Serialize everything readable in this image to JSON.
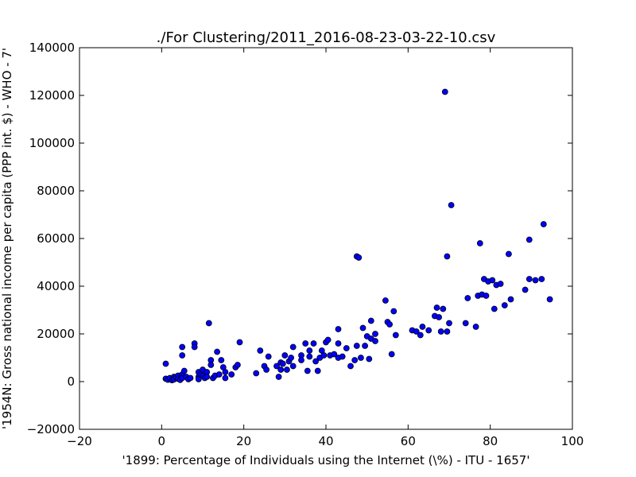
{
  "chart_data": {
    "type": "scatter",
    "title": "./For Clustering/2011_2016-08-23-03-22-10.csv",
    "xlabel": "'1899: Percentage of Individuals using the Internet (\\%) - ITU - 1657'",
    "ylabel": "'1954N: Gross national income per capita (PPP int. $) - WHO - 7'",
    "xlim": [
      -20,
      100
    ],
    "ylim": [
      -20000,
      140000
    ],
    "xticks": [
      -20,
      0,
      20,
      40,
      60,
      80,
      100
    ],
    "yticks": [
      -20000,
      0,
      20000,
      40000,
      60000,
      80000,
      100000,
      120000,
      140000
    ],
    "xtick_labels": [
      "−20",
      "0",
      "20",
      "40",
      "60",
      "80",
      "100"
    ],
    "ytick_labels": [
      "−20000",
      "0",
      "20000",
      "40000",
      "60000",
      "80000",
      "100000",
      "120000",
      "140000"
    ],
    "grid": false,
    "marker_color": "#0000ff",
    "marker_edge": "#000000",
    "points": [
      [
        1,
        7500
      ],
      [
        1,
        1200
      ],
      [
        1.5,
        800
      ],
      [
        2,
        1500
      ],
      [
        2.5,
        600
      ],
      [
        3,
        2000
      ],
      [
        3,
        900
      ],
      [
        3.5,
        1800
      ],
      [
        4,
        2500
      ],
      [
        4,
        1200
      ],
      [
        4.5,
        700
      ],
      [
        5,
        3000
      ],
      [
        5,
        1500
      ],
      [
        5,
        14500
      ],
      [
        5,
        11000
      ],
      [
        5.5,
        4500
      ],
      [
        6,
        2000
      ],
      [
        6.5,
        1000
      ],
      [
        7,
        1500
      ],
      [
        8,
        16000
      ],
      [
        8,
        14500
      ],
      [
        9,
        4000
      ],
      [
        9,
        2000
      ],
      [
        9,
        1000
      ],
      [
        9.5,
        3000
      ],
      [
        10,
        5000
      ],
      [
        10,
        2500
      ],
      [
        10.5,
        1500
      ],
      [
        11,
        4000
      ],
      [
        11,
        2000
      ],
      [
        11.5,
        24500
      ],
      [
        12,
        9000
      ],
      [
        12,
        7000
      ],
      [
        12.5,
        1500
      ],
      [
        13,
        2500
      ],
      [
        13.5,
        12500
      ],
      [
        14,
        3000
      ],
      [
        14.5,
        9000
      ],
      [
        15,
        6000
      ],
      [
        15.5,
        4000
      ],
      [
        15.5,
        1500
      ],
      [
        17,
        3000
      ],
      [
        18,
        6000
      ],
      [
        18.5,
        7000
      ],
      [
        19,
        16500
      ],
      [
        23,
        3500
      ],
      [
        24,
        13000
      ],
      [
        25,
        6500
      ],
      [
        25.5,
        5000
      ],
      [
        26,
        10500
      ],
      [
        28,
        6500
      ],
      [
        28.5,
        2000
      ],
      [
        29,
        8000
      ],
      [
        29,
        5000
      ],
      [
        29.5,
        7500
      ],
      [
        30,
        11000
      ],
      [
        30.5,
        5000
      ],
      [
        31,
        8500
      ],
      [
        31.5,
        10000
      ],
      [
        32,
        6500
      ],
      [
        32,
        14500
      ],
      [
        34,
        11000
      ],
      [
        34,
        9000
      ],
      [
        35,
        16000
      ],
      [
        35.5,
        4500
      ],
      [
        36,
        10500
      ],
      [
        36,
        13000
      ],
      [
        37,
        16000
      ],
      [
        37.5,
        8500
      ],
      [
        38,
        4500
      ],
      [
        38.5,
        10000
      ],
      [
        39,
        13000
      ],
      [
        39.5,
        11000
      ],
      [
        40,
        16500
      ],
      [
        40.5,
        17500
      ],
      [
        41,
        11000
      ],
      [
        42,
        11500
      ],
      [
        43,
        22000
      ],
      [
        43,
        16000
      ],
      [
        43,
        10000
      ],
      [
        44,
        10500
      ],
      [
        45,
        14000
      ],
      [
        46,
        6500
      ],
      [
        47,
        9000
      ],
      [
        47.5,
        15000
      ],
      [
        47.5,
        52500
      ],
      [
        48,
        52000
      ],
      [
        48.5,
        10000
      ],
      [
        49,
        22500
      ],
      [
        49.5,
        15000
      ],
      [
        50,
        19000
      ],
      [
        50.5,
        9500
      ],
      [
        51,
        18000
      ],
      [
        51,
        25500
      ],
      [
        52,
        20000
      ],
      [
        52,
        17000
      ],
      [
        54.5,
        34000
      ],
      [
        55,
        25000
      ],
      [
        55.5,
        24000
      ],
      [
        56,
        11500
      ],
      [
        56.5,
        29500
      ],
      [
        57,
        19500
      ],
      [
        61,
        21500
      ],
      [
        62,
        21000
      ],
      [
        63,
        19500
      ],
      [
        63.5,
        23000
      ],
      [
        65,
        21500
      ],
      [
        66.5,
        27500
      ],
      [
        67,
        31000
      ],
      [
        67.5,
        27000
      ],
      [
        68,
        21000
      ],
      [
        68.5,
        30500
      ],
      [
        69,
        121500
      ],
      [
        69.5,
        21000
      ],
      [
        69.5,
        52500
      ],
      [
        70,
        24500
      ],
      [
        70.5,
        74000
      ],
      [
        74,
        24500
      ],
      [
        74.5,
        35000
      ],
      [
        76.5,
        23000
      ],
      [
        77,
        36000
      ],
      [
        77.5,
        58000
      ],
      [
        78,
        36500
      ],
      [
        78.5,
        43000
      ],
      [
        79,
        36000
      ],
      [
        79.5,
        42000
      ],
      [
        80.5,
        42500
      ],
      [
        81,
        30500
      ],
      [
        81.5,
        40500
      ],
      [
        82.5,
        41000
      ],
      [
        83.5,
        32000
      ],
      [
        84.5,
        53500
      ],
      [
        85,
        34500
      ],
      [
        88.5,
        38500
      ],
      [
        89.5,
        59500
      ],
      [
        89.5,
        43000
      ],
      [
        91,
        42500
      ],
      [
        92.5,
        43000
      ],
      [
        93,
        66000
      ],
      [
        94.5,
        34500
      ]
    ]
  }
}
